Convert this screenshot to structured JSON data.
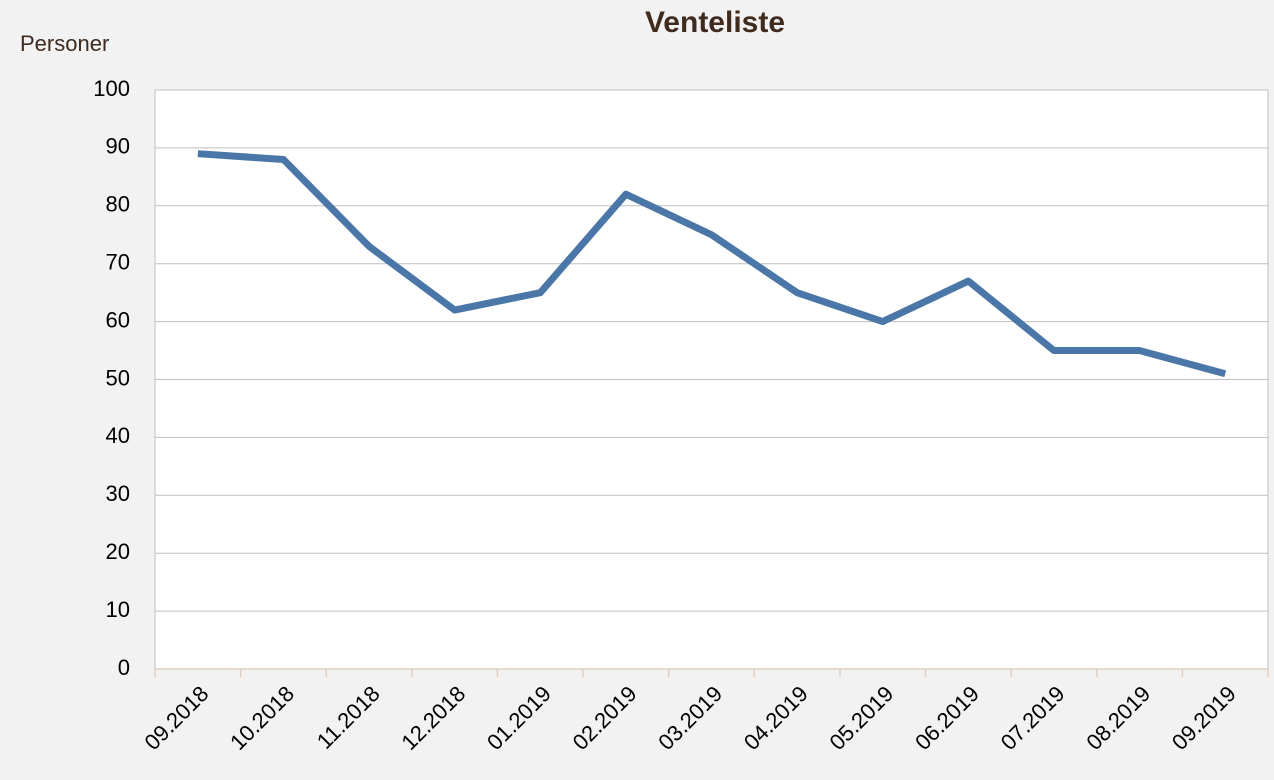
{
  "chart_data": {
    "type": "line",
    "title": "Venteliste",
    "y_label": "Personer",
    "categories": [
      "09.2018",
      "10.2018",
      "11.2018",
      "12.2018",
      "01.2019",
      "02.2019",
      "03.2019",
      "04.2019",
      "05.2019",
      "06.2019",
      "07.2019",
      "08.2019",
      "09.2019"
    ],
    "series": [
      {
        "name": "Venteliste",
        "color": "#4a76a8",
        "values": [
          89,
          88,
          73,
          62,
          65,
          82,
          75,
          65,
          60,
          67,
          55,
          55,
          51
        ]
      }
    ],
    "ylim": [
      0,
      100
    ],
    "yticks": [
      0,
      10,
      20,
      30,
      40,
      50,
      60,
      70,
      80,
      90,
      100
    ],
    "grid": true
  }
}
